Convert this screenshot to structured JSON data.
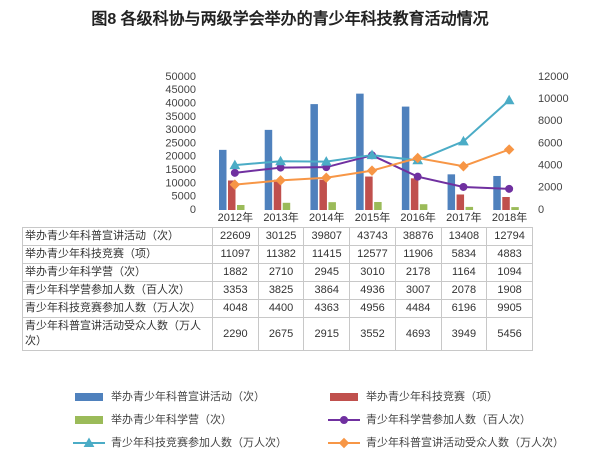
{
  "chart_data": {
    "type": "bar",
    "title": "图8 各级科协与两级学会举办的青少年科技教育活动情况",
    "categories": [
      "2012年",
      "2013年",
      "2014年",
      "2015年",
      "2016年",
      "2017年",
      "2018年"
    ],
    "ylim": [
      0,
      50000
    ],
    "yticks": [
      0,
      5000,
      10000,
      15000,
      20000,
      25000,
      30000,
      35000,
      40000,
      45000,
      50000
    ],
    "y2lim": [
      0,
      12000
    ],
    "y2ticks": [
      0,
      2000,
      4000,
      6000,
      8000,
      10000,
      12000
    ],
    "grid": false,
    "series": [
      {
        "name": "举办青少年科普宣讲活动（次）",
        "type": "bar",
        "color": "#4f81bd",
        "values": [
          22609,
          30125,
          39807,
          43743,
          38876,
          13408,
          12794
        ]
      },
      {
        "name": "举办青少年科技竞赛（项）",
        "type": "bar",
        "color": "#c0504d",
        "values": [
          11097,
          11382,
          11415,
          12577,
          11906,
          5834,
          4883
        ]
      },
      {
        "name": "举办青少年科学营（次）",
        "type": "bar",
        "color": "#9bbb59",
        "values": [
          1882,
          2710,
          2945,
          3010,
          2178,
          1164,
          1094
        ]
      },
      {
        "name": "青少年科学营参加人数（百人次）",
        "type": "line",
        "axis": "y2",
        "marker": "circle",
        "color": "#7030a0",
        "values": [
          3353,
          3825,
          3864,
          4936,
          3007,
          2078,
          1908
        ]
      },
      {
        "name": "青少年科技竞赛参加人数（万人次）",
        "type": "line",
        "axis": "y2",
        "marker": "triangle",
        "color": "#4bacc6",
        "values": [
          4048,
          4400,
          4363,
          4956,
          4484,
          6196,
          9905
        ]
      },
      {
        "name": "青少年科普宣讲活动受众人数（万人次）",
        "type": "line",
        "axis": "y2",
        "marker": "diamond",
        "color": "#f79646",
        "values": [
          2290,
          2675,
          2915,
          3552,
          4693,
          3949,
          5456
        ]
      }
    ]
  }
}
